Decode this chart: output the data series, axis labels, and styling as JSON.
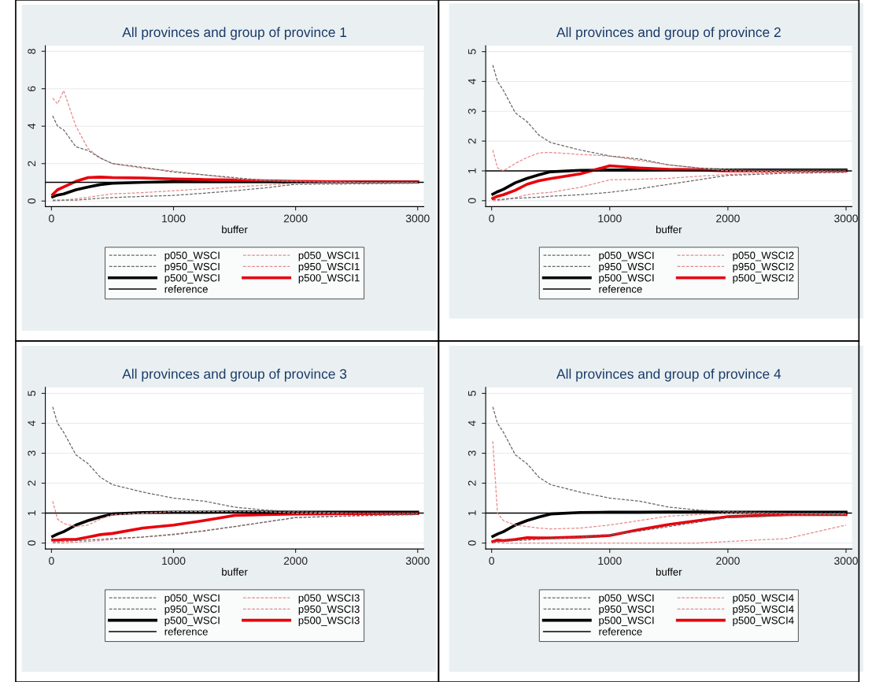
{
  "chart_data": [
    {
      "type": "line",
      "title": "All provinces and group of province 1",
      "xlabel": "buffer",
      "x": [
        10,
        50,
        100,
        200,
        300,
        400,
        500,
        750,
        1000,
        1250,
        1500,
        1750,
        2000,
        2500,
        3000
      ],
      "xlim": [
        -50,
        3050
      ],
      "xticks": [
        0,
        1000,
        2000,
        3000
      ],
      "ylim": [
        -0.3,
        8.3
      ],
      "yticks": [
        0,
        2,
        4,
        6,
        8
      ],
      "grid": "y",
      "legend": "bottom",
      "series": [
        {
          "name": "p050_WSCI",
          "color": "#666666",
          "line_style": "dashed",
          "values": [
            0.05,
            0.05,
            0.05,
            0.05,
            0.1,
            0.15,
            0.18,
            0.25,
            0.3,
            0.42,
            0.55,
            0.7,
            0.9,
            0.92,
            0.95
          ]
        },
        {
          "name": "p950_WSCI",
          "color": "#666666",
          "line_style": "dashed",
          "values": [
            4.55,
            4.0,
            3.8,
            2.9,
            2.7,
            2.3,
            2.0,
            1.8,
            1.55,
            1.4,
            1.25,
            1.1,
            1.05,
            1.0,
            1.0
          ]
        },
        {
          "name": "p500_WSCI",
          "color": "#000000",
          "line_style": "solid",
          "values": [
            0.22,
            0.32,
            0.38,
            0.6,
            0.75,
            0.88,
            0.95,
            1.0,
            1.03,
            1.03,
            1.03,
            1.03,
            1.02,
            1.02,
            1.02
          ]
        },
        {
          "name": "p050_WSCI1",
          "color": "#e58a8a",
          "line_style": "dashed",
          "values": [
            0,
            0.02,
            0.05,
            0.12,
            0.2,
            0.3,
            0.38,
            0.45,
            0.55,
            0.65,
            0.75,
            0.85,
            0.95,
            0.97,
            0.98
          ]
        },
        {
          "name": "p950_WSCI1",
          "color": "#e58a8a",
          "line_style": "dashed",
          "values": [
            5.5,
            5.2,
            5.9,
            4.0,
            2.8,
            2.3,
            2.0,
            1.75,
            1.6,
            1.4,
            1.2,
            1.1,
            1.05,
            1.0,
            1.0
          ]
        },
        {
          "name": "p500_WSCI1",
          "color": "#e8000b",
          "line_style": "solid",
          "values": [
            0.35,
            0.6,
            0.75,
            1.05,
            1.25,
            1.28,
            1.25,
            1.23,
            1.18,
            1.15,
            1.12,
            1.08,
            1.05,
            1.02,
            1.02
          ]
        }
      ],
      "ref_lines": [
        {
          "axis": "y",
          "value": 1,
          "label": "reference",
          "color": "#000000"
        }
      ]
    },
    {
      "type": "line",
      "title": "All provinces and group of province 2",
      "xlabel": "buffer",
      "x": [
        10,
        50,
        100,
        200,
        300,
        400,
        500,
        750,
        1000,
        1250,
        1500,
        1750,
        2000,
        2500,
        3000
      ],
      "xlim": [
        -50,
        3050
      ],
      "xticks": [
        0,
        1000,
        2000,
        3000
      ],
      "ylim": [
        -0.2,
        5.2
      ],
      "yticks": [
        0,
        1,
        2,
        3,
        4,
        5
      ],
      "grid": "y",
      "legend": "bottom",
      "series": [
        {
          "name": "p050_WSCI",
          "color": "#666666",
          "line_style": "dashed",
          "values": [
            0.04,
            0.04,
            0.05,
            0.08,
            0.1,
            0.12,
            0.15,
            0.2,
            0.28,
            0.4,
            0.55,
            0.7,
            0.85,
            0.92,
            0.95
          ]
        },
        {
          "name": "p950_WSCI",
          "color": "#666666",
          "line_style": "dashed",
          "values": [
            4.55,
            4.0,
            3.7,
            2.95,
            2.65,
            2.2,
            1.95,
            1.7,
            1.5,
            1.4,
            1.2,
            1.1,
            1.05,
            1.0,
            1.0
          ]
        },
        {
          "name": "p500_WSCI",
          "color": "#000000",
          "line_style": "solid",
          "values": [
            0.22,
            0.3,
            0.38,
            0.6,
            0.75,
            0.87,
            0.97,
            1.02,
            1.03,
            1.03,
            1.04,
            1.04,
            1.03,
            1.03,
            1.03
          ]
        },
        {
          "name": "p050_WSCI2",
          "color": "#e58a8a",
          "line_style": "dashed",
          "values": [
            0,
            0,
            0.03,
            0.1,
            0.2,
            0.25,
            0.28,
            0.45,
            0.7,
            0.72,
            0.75,
            0.82,
            0.88,
            0.95,
            0.95
          ]
        },
        {
          "name": "p950_WSCI2",
          "color": "#e58a8a",
          "line_style": "dashed",
          "values": [
            1.7,
            1.1,
            1.0,
            1.25,
            1.45,
            1.6,
            1.62,
            1.55,
            1.5,
            1.35,
            1.2,
            1.1,
            1.0,
            0.98,
            0.97
          ]
        },
        {
          "name": "p500_WSCI2",
          "color": "#e8000b",
          "line_style": "solid",
          "values": [
            0.08,
            0.15,
            0.2,
            0.35,
            0.55,
            0.67,
            0.74,
            0.9,
            1.17,
            1.1,
            1.05,
            1.03,
            1.0,
            1.0,
            1.0
          ]
        }
      ],
      "ref_lines": [
        {
          "axis": "y",
          "value": 1,
          "label": "reference",
          "color": "#000000"
        }
      ]
    },
    {
      "type": "line",
      "title": "All provinces and group of province 3",
      "xlabel": "buffer",
      "x": [
        10,
        50,
        100,
        200,
        300,
        400,
        500,
        750,
        1000,
        1250,
        1500,
        1750,
        2000,
        2500,
        3000
      ],
      "xlim": [
        -50,
        3050
      ],
      "xticks": [
        0,
        1000,
        2000,
        3000
      ],
      "ylim": [
        -0.2,
        5.2
      ],
      "yticks": [
        0,
        1,
        2,
        3,
        4,
        5
      ],
      "grid": "y",
      "legend": "bottom",
      "series": [
        {
          "name": "p050_WSCI",
          "color": "#666666",
          "line_style": "dashed",
          "values": [
            0.04,
            0.04,
            0.05,
            0.08,
            0.1,
            0.12,
            0.15,
            0.2,
            0.28,
            0.4,
            0.55,
            0.7,
            0.85,
            0.92,
            0.95
          ]
        },
        {
          "name": "p950_WSCI",
          "color": "#666666",
          "line_style": "dashed",
          "values": [
            4.55,
            4.0,
            3.7,
            2.95,
            2.65,
            2.2,
            1.95,
            1.7,
            1.5,
            1.4,
            1.2,
            1.1,
            1.05,
            1.0,
            1.0
          ]
        },
        {
          "name": "p500_WSCI",
          "color": "#000000",
          "line_style": "solid",
          "values": [
            0.22,
            0.3,
            0.38,
            0.6,
            0.75,
            0.87,
            0.97,
            1.02,
            1.03,
            1.03,
            1.04,
            1.04,
            1.03,
            1.03,
            1.03
          ]
        },
        {
          "name": "p050_WSCI3",
          "color": "#e58a8a",
          "line_style": "dashed",
          "values": [
            0,
            0,
            0,
            0.03,
            0.05,
            0.08,
            0.12,
            0.2,
            0.3,
            0.42,
            0.55,
            0.7,
            0.85,
            0.9,
            0.95
          ]
        },
        {
          "name": "p950_WSCI3",
          "color": "#e58a8a",
          "line_style": "dashed",
          "values": [
            1.4,
            0.8,
            0.65,
            0.55,
            0.6,
            0.8,
            0.95,
            1.0,
            1.05,
            1.05,
            1.05,
            1.05,
            1.0,
            1.0,
            1.0
          ]
        },
        {
          "name": "p500_WSCI3",
          "color": "#e8000b",
          "line_style": "solid",
          "values": [
            0.1,
            0.1,
            0.12,
            0.12,
            0.2,
            0.28,
            0.32,
            0.5,
            0.6,
            0.75,
            0.92,
            0.95,
            0.97,
            0.98,
            0.98
          ]
        }
      ],
      "ref_lines": [
        {
          "axis": "y",
          "value": 1,
          "label": "reference",
          "color": "#000000"
        }
      ]
    },
    {
      "type": "line",
      "title": "All provinces and group of province 4",
      "xlabel": "buffer",
      "x": [
        10,
        50,
        100,
        200,
        300,
        400,
        500,
        750,
        1000,
        1250,
        1500,
        1750,
        2000,
        2500,
        3000
      ],
      "xlim": [
        -50,
        3050
      ],
      "xticks": [
        0,
        1000,
        2000,
        3000
      ],
      "ylim": [
        -0.2,
        5.2
      ],
      "yticks": [
        0,
        1,
        2,
        3,
        4,
        5
      ],
      "grid": "y",
      "legend": "bottom",
      "series": [
        {
          "name": "p050_WSCI",
          "color": "#666666",
          "line_style": "dashed",
          "values": [
            0.04,
            0.04,
            0.05,
            0.08,
            0.1,
            0.12,
            0.15,
            0.2,
            0.28,
            0.4,
            0.55,
            0.7,
            0.85,
            0.92,
            0.95
          ]
        },
        {
          "name": "p950_WSCI",
          "color": "#666666",
          "line_style": "dashed",
          "values": [
            4.55,
            4.0,
            3.7,
            2.95,
            2.65,
            2.2,
            1.95,
            1.7,
            1.5,
            1.4,
            1.2,
            1.1,
            1.05,
            1.0,
            1.0
          ]
        },
        {
          "name": "p500_WSCI",
          "color": "#000000",
          "line_style": "solid",
          "values": [
            0.22,
            0.3,
            0.38,
            0.6,
            0.75,
            0.87,
            0.97,
            1.02,
            1.03,
            1.03,
            1.04,
            1.04,
            1.03,
            1.03,
            1.03
          ]
        },
        {
          "name": "p050_WSCI4",
          "color": "#e58a8a",
          "line_style": "dashed",
          "values": [
            0,
            0.02,
            0,
            0,
            0,
            0,
            0,
            0,
            0,
            0,
            0,
            0,
            0.05,
            0.15,
            0.6
          ]
        },
        {
          "name": "p950_WSCI4",
          "color": "#e58a8a",
          "line_style": "dashed",
          "values": [
            3.4,
            1.0,
            0.75,
            0.6,
            0.55,
            0.5,
            0.47,
            0.5,
            0.6,
            0.75,
            0.9,
            0.95,
            1.0,
            0.98,
            0.97
          ]
        },
        {
          "name": "p500_WSCI4",
          "color": "#e8000b",
          "line_style": "solid",
          "values": [
            0.05,
            0.1,
            0.08,
            0.12,
            0.18,
            0.17,
            0.17,
            0.2,
            0.25,
            0.45,
            0.62,
            0.75,
            0.88,
            0.95,
            0.95
          ]
        }
      ],
      "ref_lines": [
        {
          "axis": "y",
          "value": 1,
          "label": "reference",
          "color": "#000000"
        }
      ]
    }
  ]
}
